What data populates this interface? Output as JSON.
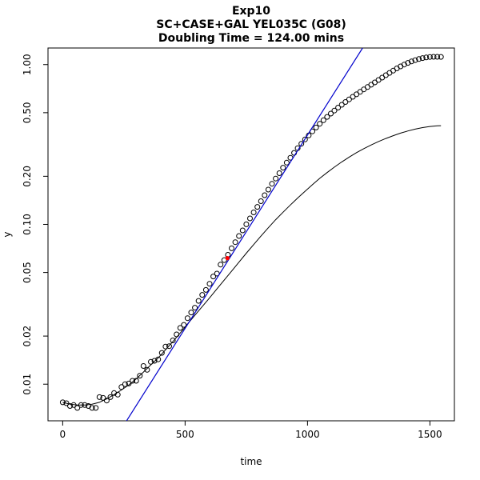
{
  "chart_data": {
    "type": "scatter",
    "title": [
      "Exp10",
      "SC+CASE+GAL YEL035C (G08)",
      "Doubling Time = 124.00 mins"
    ],
    "xlabel": "time",
    "ylabel": "y",
    "xlim": [
      -60,
      1600
    ],
    "ylim": [
      0.0059,
      1.27
    ],
    "y_scale": "log",
    "x_ticks": [
      0,
      500,
      1000,
      1500
    ],
    "x_tick_labels": [
      "0",
      "500",
      "1000",
      "1500"
    ],
    "y_ticks": [
      0.01,
      0.02,
      0.05,
      0.1,
      0.2,
      0.5,
      1.0
    ],
    "y_tick_labels": [
      "0.01",
      "0.02",
      "0.05",
      "0.10",
      "0.20",
      "0.50",
      "1.00"
    ],
    "grid": false,
    "colors": {
      "points": "#000000",
      "fit_line": "#0000cc",
      "smooth": "#000000",
      "marker": "#ff0000"
    },
    "series": [
      {
        "kind": "points",
        "x": [
          0,
          15,
          30,
          45,
          60,
          75,
          90,
          105,
          120,
          135,
          150,
          165,
          180,
          195,
          210,
          225,
          240,
          255,
          270,
          285,
          300,
          315,
          330,
          345,
          360,
          375,
          390,
          405,
          420,
          435,
          450,
          465,
          480,
          495,
          510,
          525,
          540,
          555,
          570,
          585,
          600,
          615,
          630,
          645,
          660,
          675,
          690,
          705,
          720,
          735,
          750,
          765,
          780,
          795,
          810,
          825,
          840,
          855,
          870,
          885,
          900,
          915,
          930,
          945,
          960,
          975,
          990,
          1005,
          1020,
          1035,
          1050,
          1065,
          1080,
          1095,
          1110,
          1125,
          1140,
          1155,
          1170,
          1185,
          1200,
          1215,
          1230,
          1245,
          1260,
          1275,
          1290,
          1305,
          1320,
          1335,
          1350,
          1365,
          1380,
          1395,
          1410,
          1425,
          1440,
          1455,
          1470,
          1485,
          1500,
          1515,
          1530,
          1545
        ],
        "y": [
          0.0077,
          0.0076,
          0.0073,
          0.0074,
          0.0071,
          0.0074,
          0.0074,
          0.0073,
          0.0071,
          0.0071,
          0.0083,
          0.0082,
          0.0079,
          0.0083,
          0.0088,
          0.0086,
          0.0096,
          0.01,
          0.0101,
          0.0105,
          0.0105,
          0.0113,
          0.013,
          0.0123,
          0.0138,
          0.014,
          0.0143,
          0.0157,
          0.0172,
          0.0173,
          0.0188,
          0.0205,
          0.0225,
          0.0235,
          0.0259,
          0.0281,
          0.0301,
          0.0332,
          0.0362,
          0.0389,
          0.0425,
          0.0472,
          0.0492,
          0.056,
          0.0598,
          0.0645,
          0.0708,
          0.0774,
          0.0846,
          0.0917,
          0.1001,
          0.109,
          0.1189,
          0.1287,
          0.1396,
          0.1522,
          0.1651,
          0.1796,
          0.1935,
          0.2092,
          0.2263,
          0.2434,
          0.2612,
          0.2802,
          0.2998,
          0.3195,
          0.3401,
          0.3603,
          0.382,
          0.404,
          0.4261,
          0.4484,
          0.4709,
          0.4933,
          0.5157,
          0.538,
          0.5605,
          0.5832,
          0.6058,
          0.6288,
          0.6518,
          0.6755,
          0.6995,
          0.7235,
          0.7482,
          0.774,
          0.801,
          0.8289,
          0.8579,
          0.8874,
          0.917,
          0.9461,
          0.974,
          1.0002,
          1.0244,
          1.0466,
          1.0663,
          1.0833,
          1.0977,
          1.1089,
          1.116,
          1.1193,
          1.1193,
          1.1178
        ]
      },
      {
        "kind": "smooth",
        "x": [
          0,
          30,
          60,
          90,
          120,
          150,
          180,
          210,
          240,
          270,
          300,
          330,
          360,
          390,
          420,
          450,
          480,
          510,
          540,
          570,
          600,
          630,
          660,
          690,
          720,
          750,
          780,
          810,
          840,
          870,
          900,
          930,
          960,
          990,
          1020,
          1050,
          1080,
          1110,
          1140,
          1170,
          1200,
          1230,
          1260,
          1290,
          1320,
          1350,
          1380,
          1410,
          1440,
          1470,
          1500,
          1530,
          1545
        ],
        "y": [
          0.0077,
          0.0075,
          0.0074,
          0.0074,
          0.0075,
          0.0077,
          0.0081,
          0.0086,
          0.0092,
          0.0099,
          0.0108,
          0.0119,
          0.0132,
          0.0146,
          0.0164,
          0.0185,
          0.0209,
          0.0238,
          0.027,
          0.0306,
          0.0347,
          0.0395,
          0.0448,
          0.051,
          0.058,
          0.066,
          0.0748,
          0.0845,
          0.0953,
          0.107,
          0.1191,
          0.1323,
          0.1462,
          0.1611,
          0.1772,
          0.1941,
          0.2109,
          0.2282,
          0.2459,
          0.2636,
          0.2811,
          0.2979,
          0.3142,
          0.3301,
          0.345,
          0.359,
          0.3723,
          0.3843,
          0.3946,
          0.4032,
          0.4097,
          0.4137,
          0.4148
        ]
      },
      {
        "kind": "fit_line",
        "doubling_time": 124.0,
        "x": [
          250,
          1225
        ],
        "y": [
          0.00555,
          1.27
        ]
      },
      {
        "kind": "marker",
        "x": [
          673
        ],
        "y": [
          0.0615
        ]
      }
    ]
  }
}
